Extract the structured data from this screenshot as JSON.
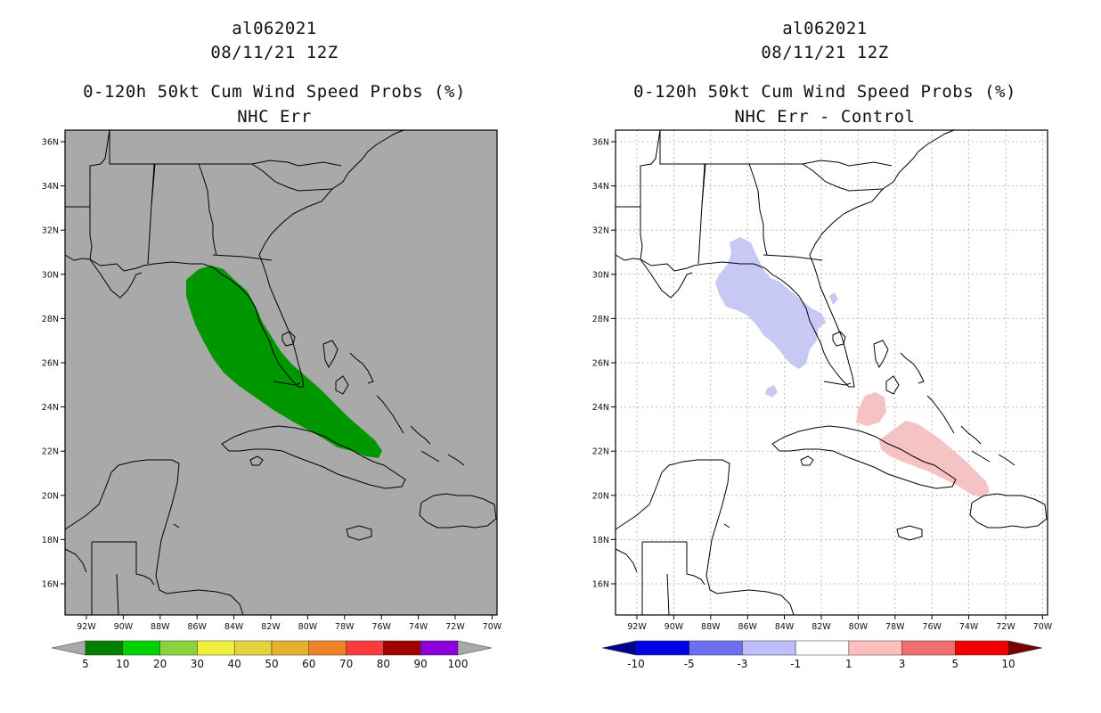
{
  "left_panel": {
    "storm_id": "al062021",
    "datetime": "08/11/21 12Z",
    "product": "0-120h 50kt Cum Wind Speed Probs (%)",
    "subtitle": "NHC Err",
    "background_color": "#a9a9a9",
    "colorbar": {
      "labels": [
        "5",
        "10",
        "20",
        "30",
        "40",
        "50",
        "60",
        "70",
        "80",
        "90",
        "100"
      ],
      "colors": [
        "#007f00",
        "#00d200",
        "#8cd23c",
        "#f0f03c",
        "#e6d23c",
        "#e6af2d",
        "#f08228",
        "#fa3c3c",
        "#a00000",
        "#8c00dc"
      ],
      "under_color": "#a9a9a9",
      "over_color": "#a9a9a9"
    }
  },
  "right_panel": {
    "storm_id": "al062021",
    "datetime": "08/11/21 12Z",
    "product": "0-120h 50kt Cum Wind Speed Probs (%)",
    "subtitle": "NHC Err - Control",
    "background_color": "#ffffff",
    "colorbar": {
      "labels": [
        "-10",
        "-5",
        "-3",
        "-1",
        "1",
        "3",
        "5",
        "10"
      ],
      "colors": [
        "#0000e6",
        "#6e6ef0",
        "#bebeff",
        "#ffffff",
        "#ffbebe",
        "#f06e6e",
        "#f00000"
      ],
      "under_color": "#00008c",
      "over_color": "#780000"
    }
  },
  "axes": {
    "lat_labels": [
      "36N",
      "34N",
      "32N",
      "30N",
      "28N",
      "26N",
      "24N",
      "22N",
      "20N",
      "18N",
      "16N"
    ],
    "lon_labels": [
      "92W",
      "90W",
      "88W",
      "86W",
      "84W",
      "82W",
      "80W",
      "78W",
      "76W",
      "74W",
      "72W",
      "70W"
    ]
  },
  "map_data": {
    "extent": {
      "lon_min": -93,
      "lon_max": -70,
      "lat_min": 14.6,
      "lat_max": 36.5
    },
    "left_field": {
      "name": "50kt probability 5-10%",
      "color": "#009600"
    },
    "right_field_negative": {
      "name": "difference -3 to -1",
      "color": "#c8c8f5"
    },
    "right_field_positive": {
      "name": "difference 1 to 3",
      "color": "#f5c3c3"
    }
  }
}
